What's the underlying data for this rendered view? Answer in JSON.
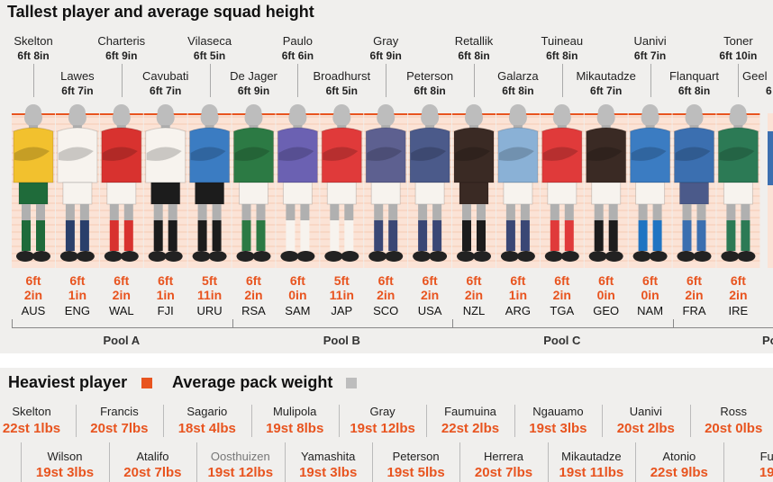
{
  "chart_data": [
    {
      "type": "bar",
      "title": "Tallest player and average squad height",
      "pools": [
        {
          "label": "Pool A",
          "teams": [
            "AUS",
            "ENG",
            "WAL",
            "FJI",
            "URU"
          ]
        },
        {
          "label": "Pool B",
          "teams": [
            "RSA",
            "SAM",
            "JAP",
            "SCO",
            "USA"
          ]
        },
        {
          "label": "Pool C",
          "teams": [
            "NZL",
            "ARG",
            "TGA",
            "GEO",
            "NAM"
          ]
        },
        {
          "label": "Po",
          "teams": [
            "FRA",
            "IRE"
          ]
        }
      ],
      "teams": [
        {
          "code": "AUS",
          "tallest": "Skelton",
          "tallest_height": "6ft 8in",
          "avg_ft": "6ft",
          "avg_in": "2in",
          "jersey": "#f2c12e",
          "shorts": "#1f6b3a",
          "socks": "#1f6b3a"
        },
        {
          "code": "ENG",
          "tallest": "Lawes",
          "tallest_height": "6ft 7in",
          "avg_ft": "6ft",
          "avg_in": "1in",
          "jersey": "#f7f3ee",
          "shorts": "#f7f3ee",
          "socks": "#2a3f6b"
        },
        {
          "code": "WAL",
          "tallest": "Charteris",
          "tallest_height": "6ft 9in",
          "avg_ft": "6ft",
          "avg_in": "2in",
          "jersey": "#d8322f",
          "shorts": "#f7f3ee",
          "socks": "#d8322f"
        },
        {
          "code": "FJI",
          "tallest": "Cavubati",
          "tallest_height": "6ft 7in",
          "avg_ft": "6ft",
          "avg_in": "1in",
          "jersey": "#f7f3ee",
          "shorts": "#1c1c1c",
          "socks": "#1c1c1c"
        },
        {
          "code": "URU",
          "tallest": "Vilaseca",
          "tallest_height": "6ft 5in",
          "avg_ft": "5ft",
          "avg_in": "11in",
          "jersey": "#3b7cc2",
          "shorts": "#1c1c1c",
          "socks": "#1c1c1c"
        },
        {
          "code": "RSA",
          "tallest": "De Jager",
          "tallest_height": "6ft 9in",
          "avg_ft": "6ft",
          "avg_in": "2in",
          "jersey": "#2c7a44",
          "shorts": "#f7f3ee",
          "socks": "#2c7a44"
        },
        {
          "code": "SAM",
          "tallest": "Paulo",
          "tallest_height": "6ft 6in",
          "avg_ft": "6ft",
          "avg_in": "0in",
          "jersey": "#6b61b2",
          "shorts": "#f7f3ee",
          "socks": "#f7f3ee"
        },
        {
          "code": "JAP",
          "tallest": "Broadhurst",
          "tallest_height": "6ft 5in",
          "avg_ft": "5ft",
          "avg_in": "11in",
          "jersey": "#e03a3a",
          "shorts": "#f7f3ee",
          "socks": "#f7f3ee"
        },
        {
          "code": "SCO",
          "tallest": "Gray",
          "tallest_height": "6ft 9in",
          "avg_ft": "6ft",
          "avg_in": "2in",
          "jersey": "#5d6090",
          "shorts": "#f7f3ee",
          "socks": "#3a4775"
        },
        {
          "code": "USA",
          "tallest": "Peterson",
          "tallest_height": "6ft 8in",
          "avg_ft": "6ft",
          "avg_in": "2in",
          "jersey": "#4b5a8a",
          "shorts": "#f7f3ee",
          "socks": "#3a4775"
        },
        {
          "code": "NZL",
          "tallest": "Retallik",
          "tallest_height": "6ft 8in",
          "avg_ft": "6ft",
          "avg_in": "2in",
          "jersey": "#3a2a24",
          "shorts": "#3a2a24",
          "socks": "#1c1c1c"
        },
        {
          "code": "ARG",
          "tallest": "Galarza",
          "tallest_height": "6ft 8in",
          "avg_ft": "6ft",
          "avg_in": "1in",
          "jersey": "#8ab1d6",
          "shorts": "#f7f3ee",
          "socks": "#3a4775"
        },
        {
          "code": "TGA",
          "tallest": "Tuineau",
          "tallest_height": "6ft 8in",
          "avg_ft": "6ft",
          "avg_in": "2in",
          "jersey": "#e03a3a",
          "shorts": "#f7f3ee",
          "socks": "#e03a3a"
        },
        {
          "code": "GEO",
          "tallest": "Mikautadze",
          "tallest_height": "6ft 7in",
          "avg_ft": "6ft",
          "avg_in": "0in",
          "jersey": "#3a2a24",
          "shorts": "#f7f3ee",
          "socks": "#1c1c1c"
        },
        {
          "code": "NAM",
          "tallest": "Uanivi",
          "tallest_height": "6ft 7in",
          "avg_ft": "6ft",
          "avg_in": "0in",
          "jersey": "#3b7cc2",
          "shorts": "#f7f3ee",
          "socks": "#1f74c2"
        },
        {
          "code": "FRA",
          "tallest": "Flanquart",
          "tallest_height": "6ft 8in",
          "avg_ft": "6ft",
          "avg_in": "2in",
          "jersey": "#3b6fb0",
          "shorts": "#4b5a8a",
          "socks": "#3b6fb0"
        },
        {
          "code": "IRE",
          "tallest": "Toner",
          "tallest_height": "6ft 10in",
          "avg_ft": "6ft",
          "avg_in": "2in",
          "jersey": "#2c7a55",
          "shorts": "#f7f3ee",
          "socks": "#2c7a55"
        }
      ],
      "cut_name": "Geel",
      "cut_height": "6"
    },
    {
      "type": "table",
      "title": "Heaviest player",
      "title2": "Average pack weight",
      "legend_colors": {
        "heaviest": "#e8541f",
        "average": "#bdbdbd"
      },
      "row1": [
        {
          "name": "Skelton",
          "weight": "22st 1lbs"
        },
        {
          "name": "Francis",
          "weight": "20st 7lbs"
        },
        {
          "name": "Sagario",
          "weight": "18st 4lbs"
        },
        {
          "name": "Mulipola",
          "weight": "19st 8lbs"
        },
        {
          "name": "Gray",
          "weight": "19st 12lbs"
        },
        {
          "name": "Faumuina",
          "weight": "22st 2lbs"
        },
        {
          "name": "Ngauamo",
          "weight": "19st 3lbs"
        },
        {
          "name": "Uanivi",
          "weight": "20st 2lbs"
        },
        {
          "name": "Ross",
          "weight": "20st 0lbs"
        }
      ],
      "row2": [
        {
          "name": "Wilson",
          "weight": "19st 3lbs"
        },
        {
          "name": "Atalifo",
          "weight": "20st 7lbs"
        },
        {
          "name": "Oosthuizen",
          "weight": "19st 12lbs"
        },
        {
          "name": "Yamashita",
          "weight": "19st 3lbs"
        },
        {
          "name": "Peterson",
          "weight": "19st 5lbs"
        },
        {
          "name": "Herrera",
          "weight": "20st 7lbs"
        },
        {
          "name": "Mikautadze",
          "weight": "19st 11lbs"
        },
        {
          "name": "Atonio",
          "weight": "22st 9lbs"
        },
        {
          "name": "Fu",
          "weight": "19"
        }
      ]
    }
  ]
}
